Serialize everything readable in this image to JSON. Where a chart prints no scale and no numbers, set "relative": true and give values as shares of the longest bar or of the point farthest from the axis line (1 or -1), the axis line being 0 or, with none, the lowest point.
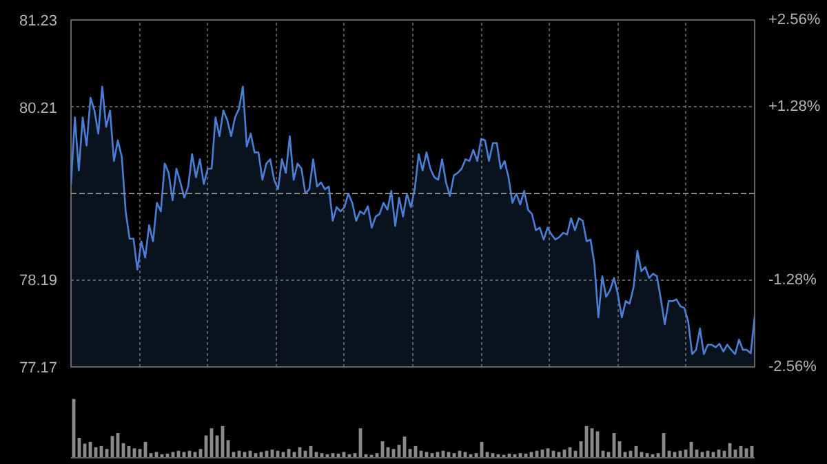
{
  "chart_data": [
    {
      "type": "area",
      "categories": [
        null,
        null,
        null,
        null,
        null,
        null,
        null,
        null,
        null,
        null,
        null,
        null,
        null,
        null,
        null,
        null,
        null,
        null,
        null,
        null,
        null,
        null,
        null,
        null,
        null,
        null,
        null,
        null,
        null,
        null,
        null,
        null,
        null,
        null,
        null,
        null,
        null,
        null,
        null,
        null,
        null,
        null,
        null,
        null,
        null,
        null,
        null,
        null,
        null,
        null,
        null,
        null,
        null,
        null,
        null,
        null,
        null,
        null,
        null,
        null,
        null,
        null,
        null,
        null,
        null,
        null,
        null,
        null,
        null,
        null,
        null,
        null,
        null,
        null,
        null,
        null,
        null,
        null,
        null,
        null,
        null,
        null,
        null,
        null,
        null,
        null,
        null,
        null,
        null,
        null,
        null,
        null,
        null,
        null,
        null,
        null,
        null,
        null,
        null,
        null,
        null,
        null,
        null,
        null,
        null,
        null,
        null,
        null,
        null,
        null,
        null,
        null,
        null,
        null,
        null,
        null,
        null,
        null,
        null,
        null,
        null,
        null,
        null,
        null,
        null,
        null,
        null,
        null,
        null,
        null,
        null,
        null,
        null,
        null,
        null,
        null,
        null,
        null,
        null,
        null,
        null,
        null,
        null,
        null,
        null,
        null,
        null,
        null,
        null,
        null,
        null,
        null,
        null,
        null,
        null,
        null,
        null,
        null,
        null,
        null,
        null,
        null,
        null,
        null,
        null,
        null,
        null,
        null,
        null,
        null,
        null,
        null,
        null,
        null,
        null,
        null
      ],
      "series": [
        {
          "color": "#4a7fd6",
          "values": [
            79.31,
            80.09,
            79.47,
            80.09,
            79.76,
            80.32,
            80.17,
            79.9,
            80.45,
            79.98,
            80.17,
            79.58,
            79.82,
            79.63,
            78.99,
            78.67,
            78.67,
            78.31,
            78.64,
            78.45,
            78.83,
            78.64,
            79.09,
            78.99,
            79.55,
            79.44,
            79.12,
            79.49,
            79.33,
            79.15,
            79.28,
            79.66,
            79.39,
            79.6,
            79.31,
            79.49,
            79.49,
            80.09,
            79.87,
            80.17,
            80.06,
            79.87,
            80.09,
            80.19,
            80.45,
            79.75,
            79.9,
            79.68,
            79.68,
            79.36,
            79.55,
            79.6,
            79.36,
            79.25,
            79.6,
            79.44,
            79.87,
            79.36,
            79.55,
            79.49,
            79.2,
            79.25,
            79.6,
            79.28,
            79.33,
            79.25,
            79.28,
            78.88,
            79.04,
            78.99,
            79.04,
            79.2,
            79.09,
            78.88,
            78.99,
            78.96,
            79.05,
            78.8,
            78.93,
            78.96,
            79.09,
            79.01,
            79.23,
            78.82,
            79.15,
            78.93,
            79.2,
            79.04,
            79.25,
            79.66,
            79.47,
            79.68,
            79.49,
            79.39,
            79.36,
            79.6,
            79.33,
            79.17,
            79.41,
            79.44,
            79.49,
            79.6,
            79.58,
            79.71,
            79.58,
            79.84,
            79.82,
            79.58,
            79.79,
            79.79,
            79.49,
            79.58,
            79.39,
            79.09,
            79.2,
            79.07,
            79.23,
            79.01,
            78.96,
            78.77,
            78.8,
            78.66,
            78.8,
            78.72,
            78.66,
            78.69,
            78.74,
            78.72,
            78.91,
            78.77,
            78.91,
            78.88,
            78.64,
            78.66,
            78.37,
            77.75,
            78.23,
            77.99,
            78.07,
            78.21,
            78.02,
            77.75,
            77.94,
            77.91,
            78.1,
            78.53,
            78.29,
            78.34,
            78.21,
            78.26,
            78.23,
            77.96,
            77.67,
            77.94,
            77.94,
            77.96,
            77.88,
            77.86,
            77.7,
            77.32,
            77.37,
            77.62,
            77.32,
            77.43,
            77.43,
            77.4,
            77.44,
            77.35,
            77.43,
            77.37,
            77.32,
            77.49,
            77.37,
            77.37,
            77.33,
            77.75
          ]
        }
      ],
      "ylim": [
        77.17,
        81.23
      ],
      "yticks": [
        81.23,
        80.21,
        78.19,
        77.17
      ],
      "y2lim": [
        -2.56,
        2.56
      ],
      "y2ticks": [
        {
          "value": 2.56,
          "label": "+2.56%"
        },
        {
          "value": 1.28,
          "label": "+1.28%"
        },
        {
          "value": -1.28,
          "label": "-1.28%"
        },
        {
          "value": -2.56,
          "label": "-2.56%"
        }
      ],
      "ref_lines": [
        {
          "axis": "y",
          "value": 79.2,
          "label": null
        }
      ],
      "grid": true
    },
    {
      "type": "bar",
      "relative": true,
      "color": "#8c8c8c",
      "categories": [
        null,
        null,
        null,
        null,
        null,
        null,
        null,
        null,
        null,
        null,
        null,
        null,
        null,
        null,
        null,
        null,
        null,
        null,
        null,
        null,
        null,
        null,
        null,
        null,
        null,
        null,
        null,
        null,
        null,
        null,
        null,
        null,
        null,
        null,
        null,
        null,
        null,
        null,
        null,
        null,
        null,
        null,
        null,
        null,
        null,
        null,
        null,
        null,
        null,
        null,
        null,
        null,
        null,
        null,
        null,
        null,
        null,
        null,
        null,
        null,
        null,
        null,
        null,
        null,
        null,
        null,
        null,
        null,
        null,
        null,
        null,
        null,
        null,
        null,
        null,
        null,
        null,
        null,
        null,
        null,
        null,
        null,
        null,
        null,
        null,
        null,
        null,
        null,
        null,
        null,
        null,
        null,
        null,
        null,
        null,
        null,
        null,
        null,
        null,
        null,
        null,
        null,
        null,
        null,
        null,
        null,
        null,
        null,
        null,
        null,
        null,
        null,
        null,
        null,
        null,
        null,
        null,
        null,
        null,
        null,
        null,
        null,
        null,
        null
      ],
      "values": [
        1.0,
        0.34,
        0.24,
        0.27,
        0.18,
        0.2,
        0.15,
        0.37,
        0.42,
        0.25,
        0.2,
        0.16,
        0.15,
        0.27,
        0.08,
        0.1,
        0.06,
        0.07,
        0.1,
        0.12,
        0.1,
        0.12,
        0.1,
        0.15,
        0.38,
        0.5,
        0.38,
        0.54,
        0.3,
        0.1,
        0.12,
        0.1,
        0.12,
        0.08,
        0.1,
        0.12,
        0.14,
        0.12,
        0.1,
        0.15,
        0.1,
        0.18,
        0.12,
        0.2,
        0.1,
        0.08,
        0.06,
        0.08,
        0.07,
        0.1,
        0.06,
        0.08,
        0.5,
        0.06,
        0.05,
        0.08,
        0.28,
        0.18,
        0.15,
        0.22,
        0.36,
        0.15,
        0.2,
        0.12,
        0.1,
        0.08,
        0.1,
        0.12,
        0.1,
        0.08,
        0.12,
        0.1,
        0.06,
        0.08,
        0.27,
        0.1,
        0.08,
        0.06,
        0.05,
        0.07,
        0.06,
        0.08,
        0.07,
        0.1,
        0.12,
        0.14,
        0.16,
        0.12,
        0.1,
        0.14,
        0.18,
        0.12,
        0.28,
        0.54,
        0.5,
        0.45,
        0.12,
        0.1,
        0.42,
        0.28,
        0.1,
        0.12,
        0.2,
        0.1,
        0.08,
        0.06,
        0.08,
        0.42,
        0.12,
        0.1,
        0.12,
        0.14,
        0.27,
        0.14,
        0.1,
        0.12,
        0.1,
        0.14,
        0.12,
        0.25,
        0.14,
        0.2,
        0.16,
        0.2
      ]
    }
  ]
}
